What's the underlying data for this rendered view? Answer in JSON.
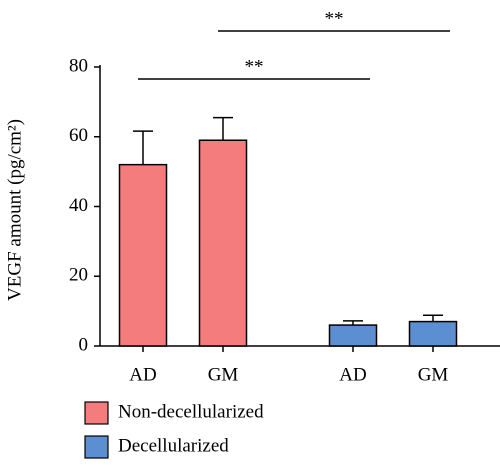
{
  "chart_data": {
    "type": "bar",
    "ylabel": "VEGF amount (pg/cm²)",
    "categories": [
      "AD",
      "GM",
      "AD",
      "GM"
    ],
    "series": [
      {
        "name": "Non-decellularized",
        "color": "#f47c7c",
        "values": [
          52,
          59,
          null,
          null
        ],
        "errors": [
          9.6,
          6.5,
          null,
          null
        ]
      },
      {
        "name": "Decellularized",
        "color": "#5b8fd1",
        "values": [
          null,
          null,
          6,
          7
        ],
        "errors": [
          null,
          null,
          1.2,
          1.8
        ]
      }
    ],
    "ylim": [
      0,
      80
    ],
    "yticks": [
      0,
      20,
      40,
      60,
      80
    ],
    "annotations": [
      {
        "text": "**",
        "from": 0,
        "to": 2
      },
      {
        "text": "**",
        "from": 1,
        "to": 3
      }
    ]
  }
}
